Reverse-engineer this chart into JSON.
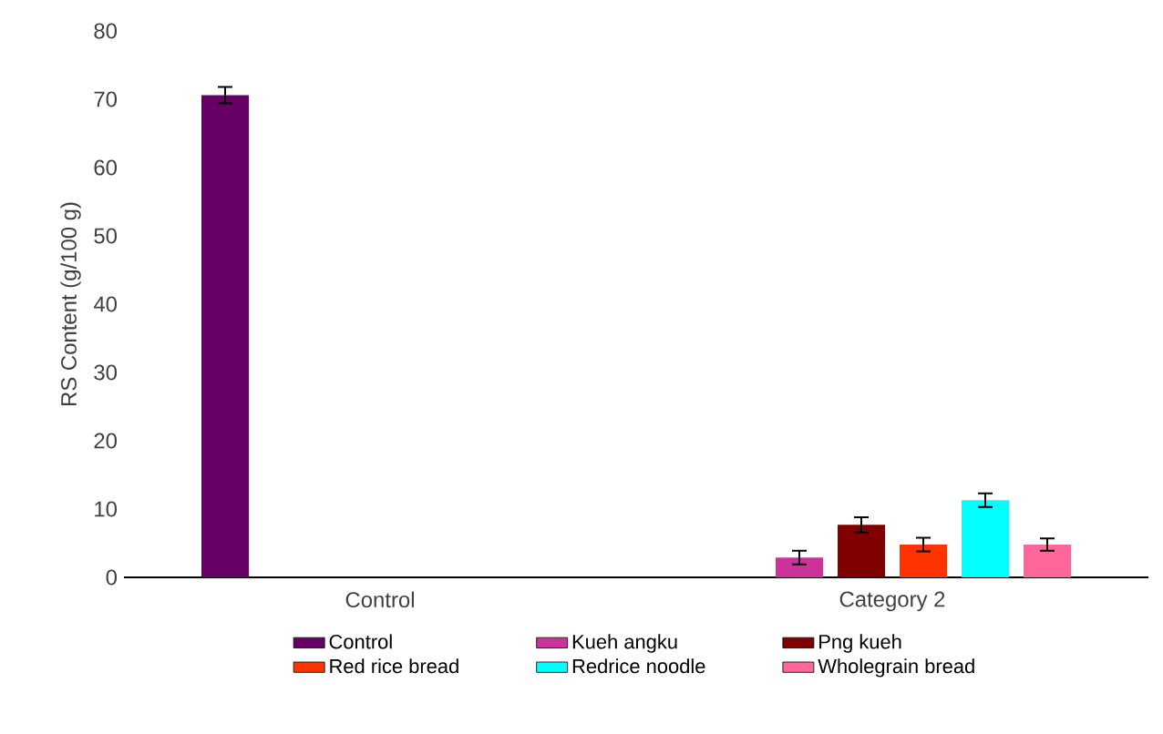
{
  "chart_data": {
    "type": "bar",
    "ylabel": "RS Content (g/100 g)",
    "categories": [
      "Control",
      "Category 2"
    ],
    "series": [
      {
        "name": "Control",
        "color": "#660066",
        "values": [
          70.6,
          null
        ],
        "errors": [
          1.2,
          null
        ]
      },
      {
        "name": "Kueh angku",
        "color": "#cc3399",
        "values": [
          null,
          2.9
        ],
        "errors": [
          null,
          1.0
        ]
      },
      {
        "name": "Png kueh",
        "color": "#800000",
        "values": [
          null,
          7.7
        ],
        "errors": [
          null,
          1.1
        ]
      },
      {
        "name": "Red rice bread",
        "color": "#ff3300",
        "values": [
          null,
          4.8
        ],
        "errors": [
          null,
          1.0
        ]
      },
      {
        "name": "Redrice noodle",
        "color": "#00ffff",
        "values": [
          null,
          11.3
        ],
        "errors": [
          null,
          1.0
        ]
      },
      {
        "name": "Wholegrain bread",
        "color": "#ff6699",
        "values": [
          null,
          4.8
        ],
        "errors": [
          null,
          0.9
        ]
      }
    ],
    "ylim": [
      0,
      80
    ],
    "yticks": [
      0,
      10,
      20,
      30,
      40,
      50,
      60,
      70,
      80
    ],
    "grid": false,
    "legend": "bottom"
  }
}
